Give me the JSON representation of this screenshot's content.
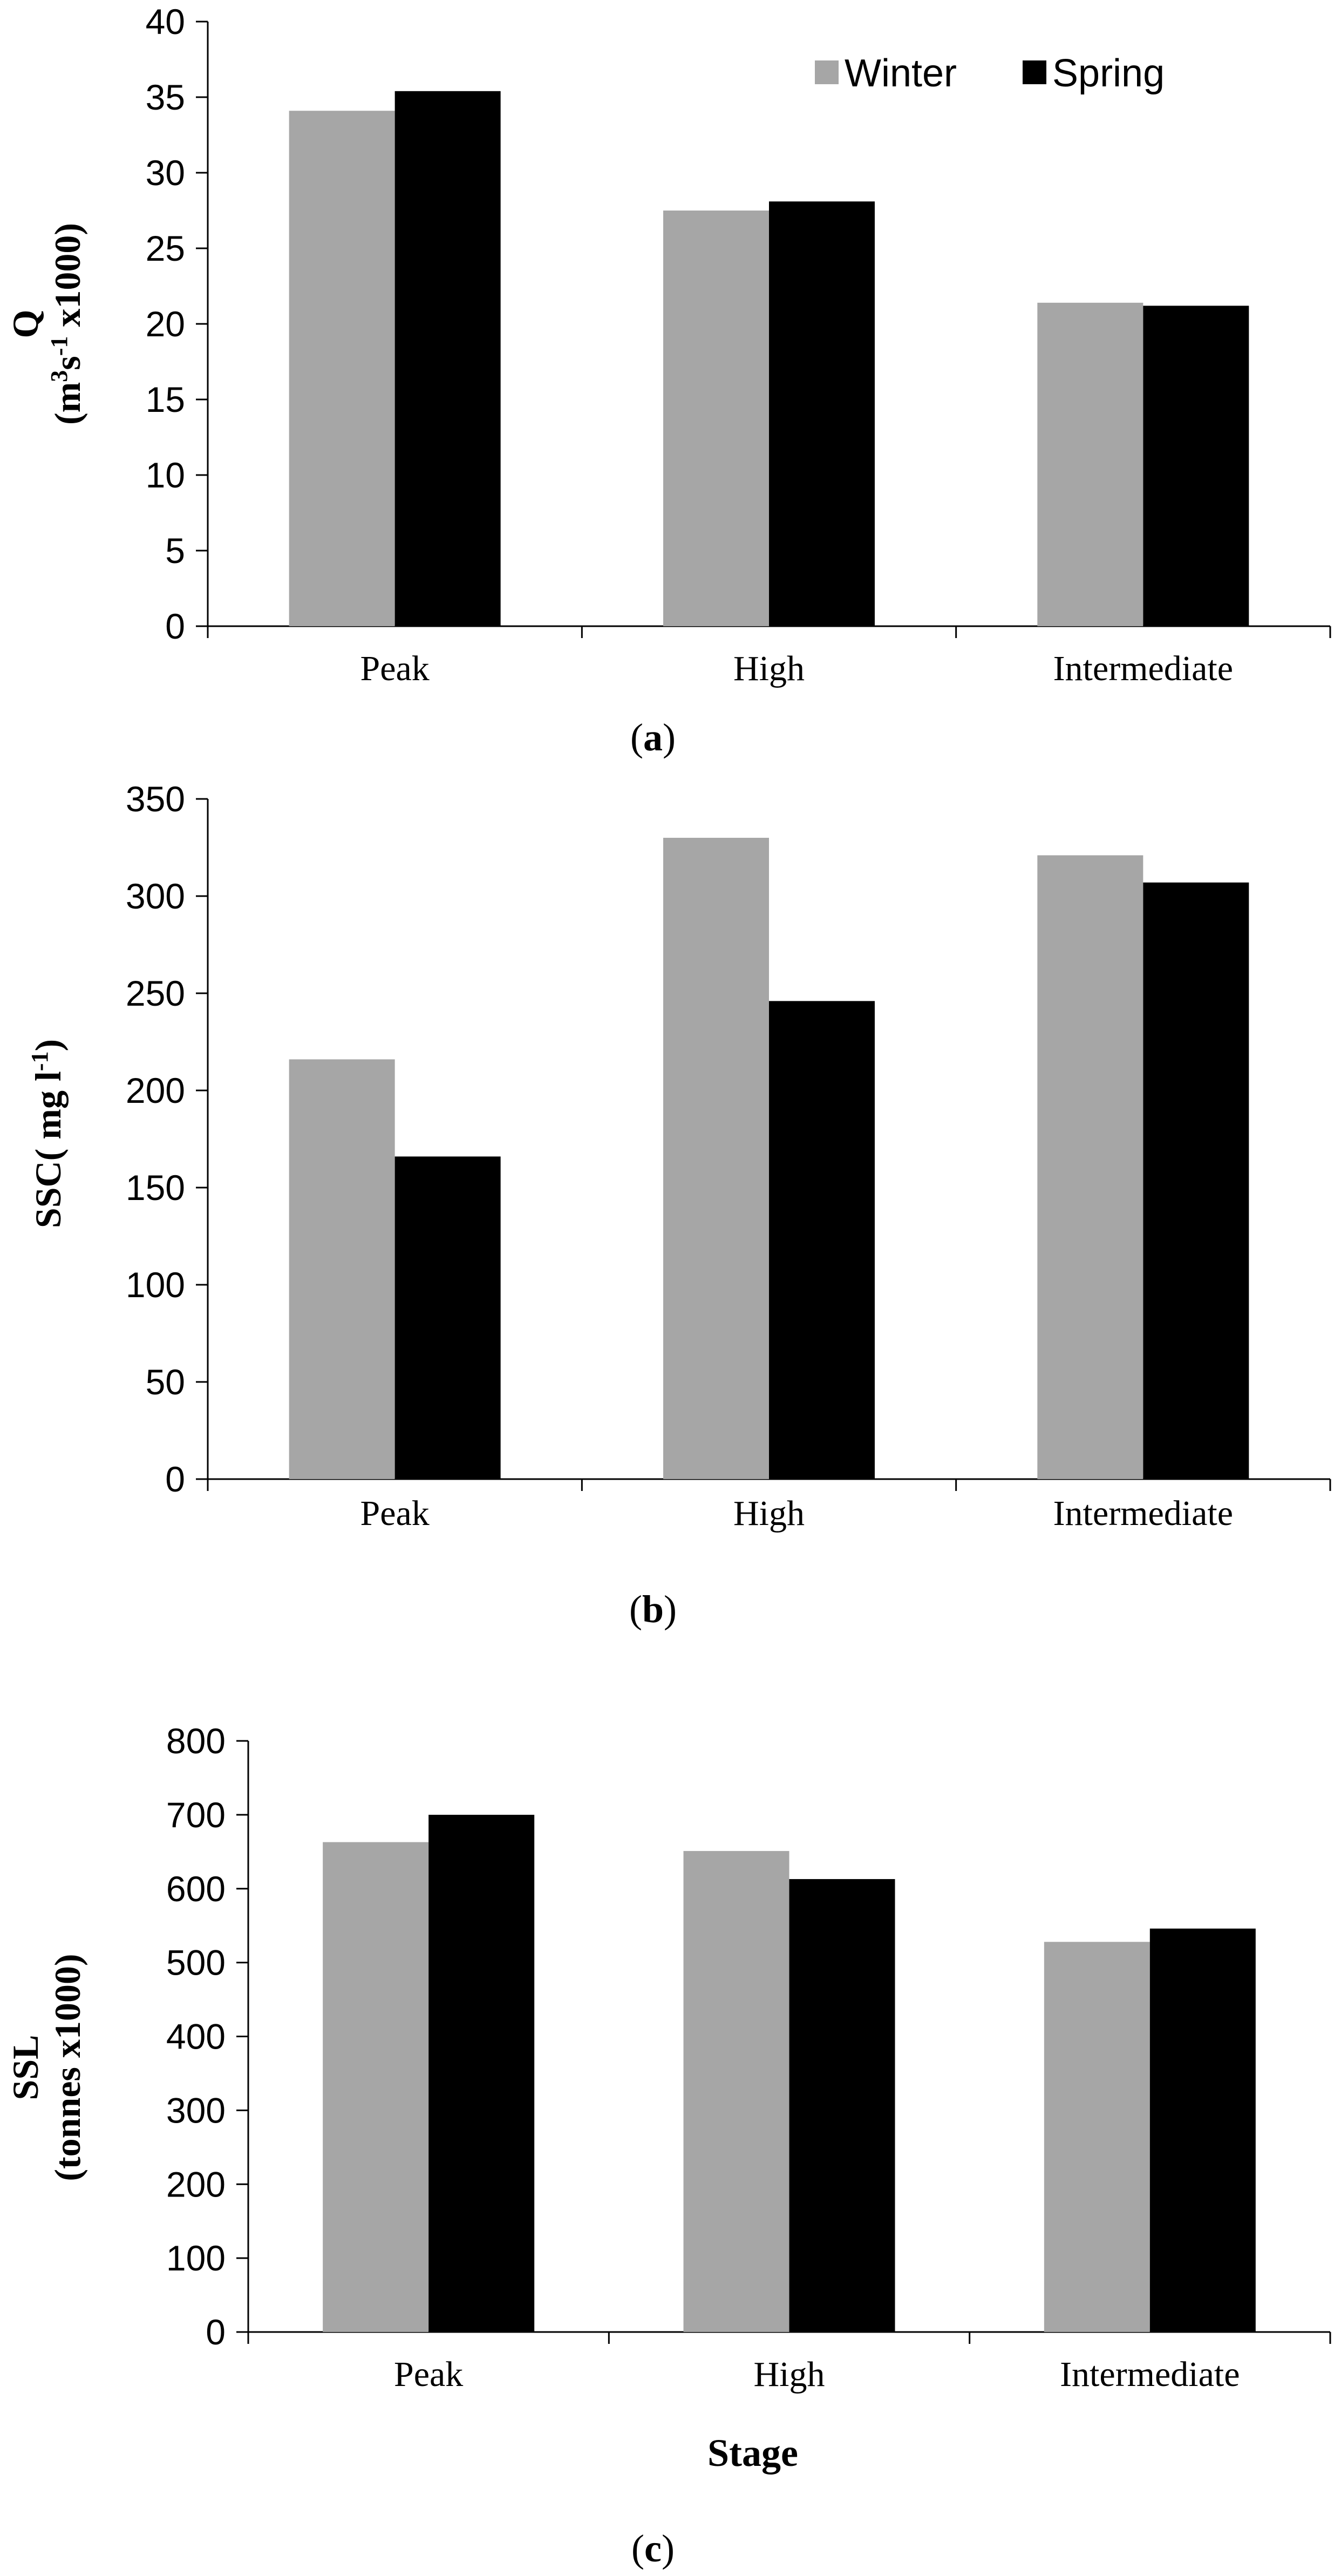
{
  "colors": {
    "winter": "#a6a6a6",
    "spring": "#000000",
    "axis": "#000000"
  },
  "legend": {
    "winter": "Winter",
    "spring": "Spring"
  },
  "xlabel": "Stage",
  "chart_data": [
    {
      "type": "bar",
      "panel_label": "a",
      "ylabel_line1": "Q",
      "ylabel_line2": "(m3s-1 x1000)",
      "ylabel_base": "(m",
      "ylabel_sup1": "3",
      "ylabel_mid": "s",
      "ylabel_sup2": "-1",
      "ylabel_tail": " x1000)",
      "categories": [
        "Peak",
        "High",
        "Intermediate"
      ],
      "series": [
        {
          "name": "Winter",
          "values": [
            34.1,
            27.5,
            21.4
          ]
        },
        {
          "name": "Spring",
          "values": [
            35.4,
            28.1,
            21.2
          ]
        }
      ],
      "ylim": [
        0,
        40
      ],
      "ticks": [
        0,
        5,
        10,
        15,
        20,
        25,
        30,
        35,
        40
      ],
      "legend_position": "top-right"
    },
    {
      "type": "bar",
      "panel_label": "b",
      "ylabel": "SSC( mg l-1)",
      "ylabel_base": "SSC( mg l",
      "ylabel_sup": "-1",
      "ylabel_tail": ")",
      "categories": [
        "Peak",
        "High",
        "Intermediate"
      ],
      "series": [
        {
          "name": "Winter",
          "values": [
            216,
            330,
            321
          ]
        },
        {
          "name": "Spring",
          "values": [
            166,
            246,
            307
          ]
        }
      ],
      "ylim": [
        0,
        350
      ],
      "ticks": [
        0,
        50,
        100,
        150,
        200,
        250,
        300,
        350
      ]
    },
    {
      "type": "bar",
      "panel_label": "c",
      "ylabel_line1": "SSL",
      "ylabel_line2": "(tonnes x1000)",
      "categories": [
        "Peak",
        "High",
        "Intermediate"
      ],
      "series": [
        {
          "name": "Winter",
          "values": [
            663,
            651,
            528
          ]
        },
        {
          "name": "Spring",
          "values": [
            700,
            613,
            546
          ]
        }
      ],
      "ylim": [
        0,
        800
      ],
      "ticks": [
        0,
        100,
        200,
        300,
        400,
        500,
        600,
        700,
        800
      ]
    }
  ]
}
